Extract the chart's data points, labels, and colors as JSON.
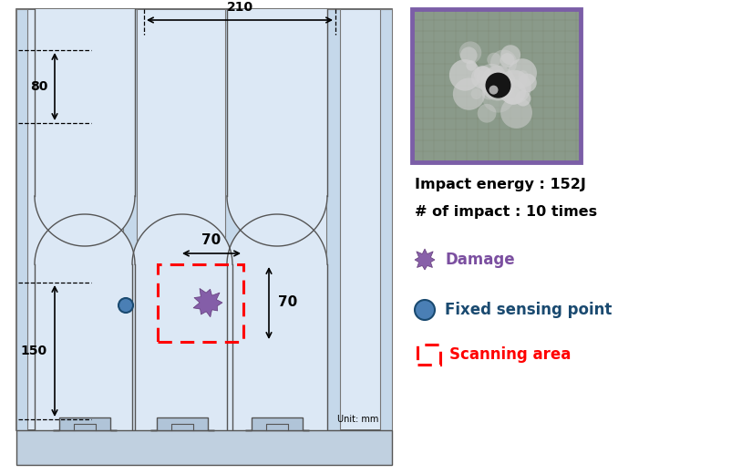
{
  "bg_color": "#dce8f5",
  "panel_bg": "#ffffff",
  "stringer_fill": "#c5d8ea",
  "stringer_edge": "#777777",
  "title_text1": "Impact energy : 152J",
  "title_text2": "# of impact : 10 times",
  "legend_damage": "Damage",
  "legend_sensing": "Fixed sensing point",
  "legend_scanning": "Scanning area",
  "dim_210": "210",
  "dim_80": "80",
  "dim_150": "150",
  "dim_70h": "70",
  "dim_70v": "70",
  "unit_text": "Unit: mm",
  "damage_color": "#7b4fa0",
  "sensing_color": "#4a7fb5",
  "sensing_edge": "#1a4a70",
  "red_dash": "#ff0000",
  "photo_border": "#7b5ea7",
  "struct_edge": "#555555",
  "profile_fill": "#c0d0e0",
  "profile_edge": "#555555"
}
